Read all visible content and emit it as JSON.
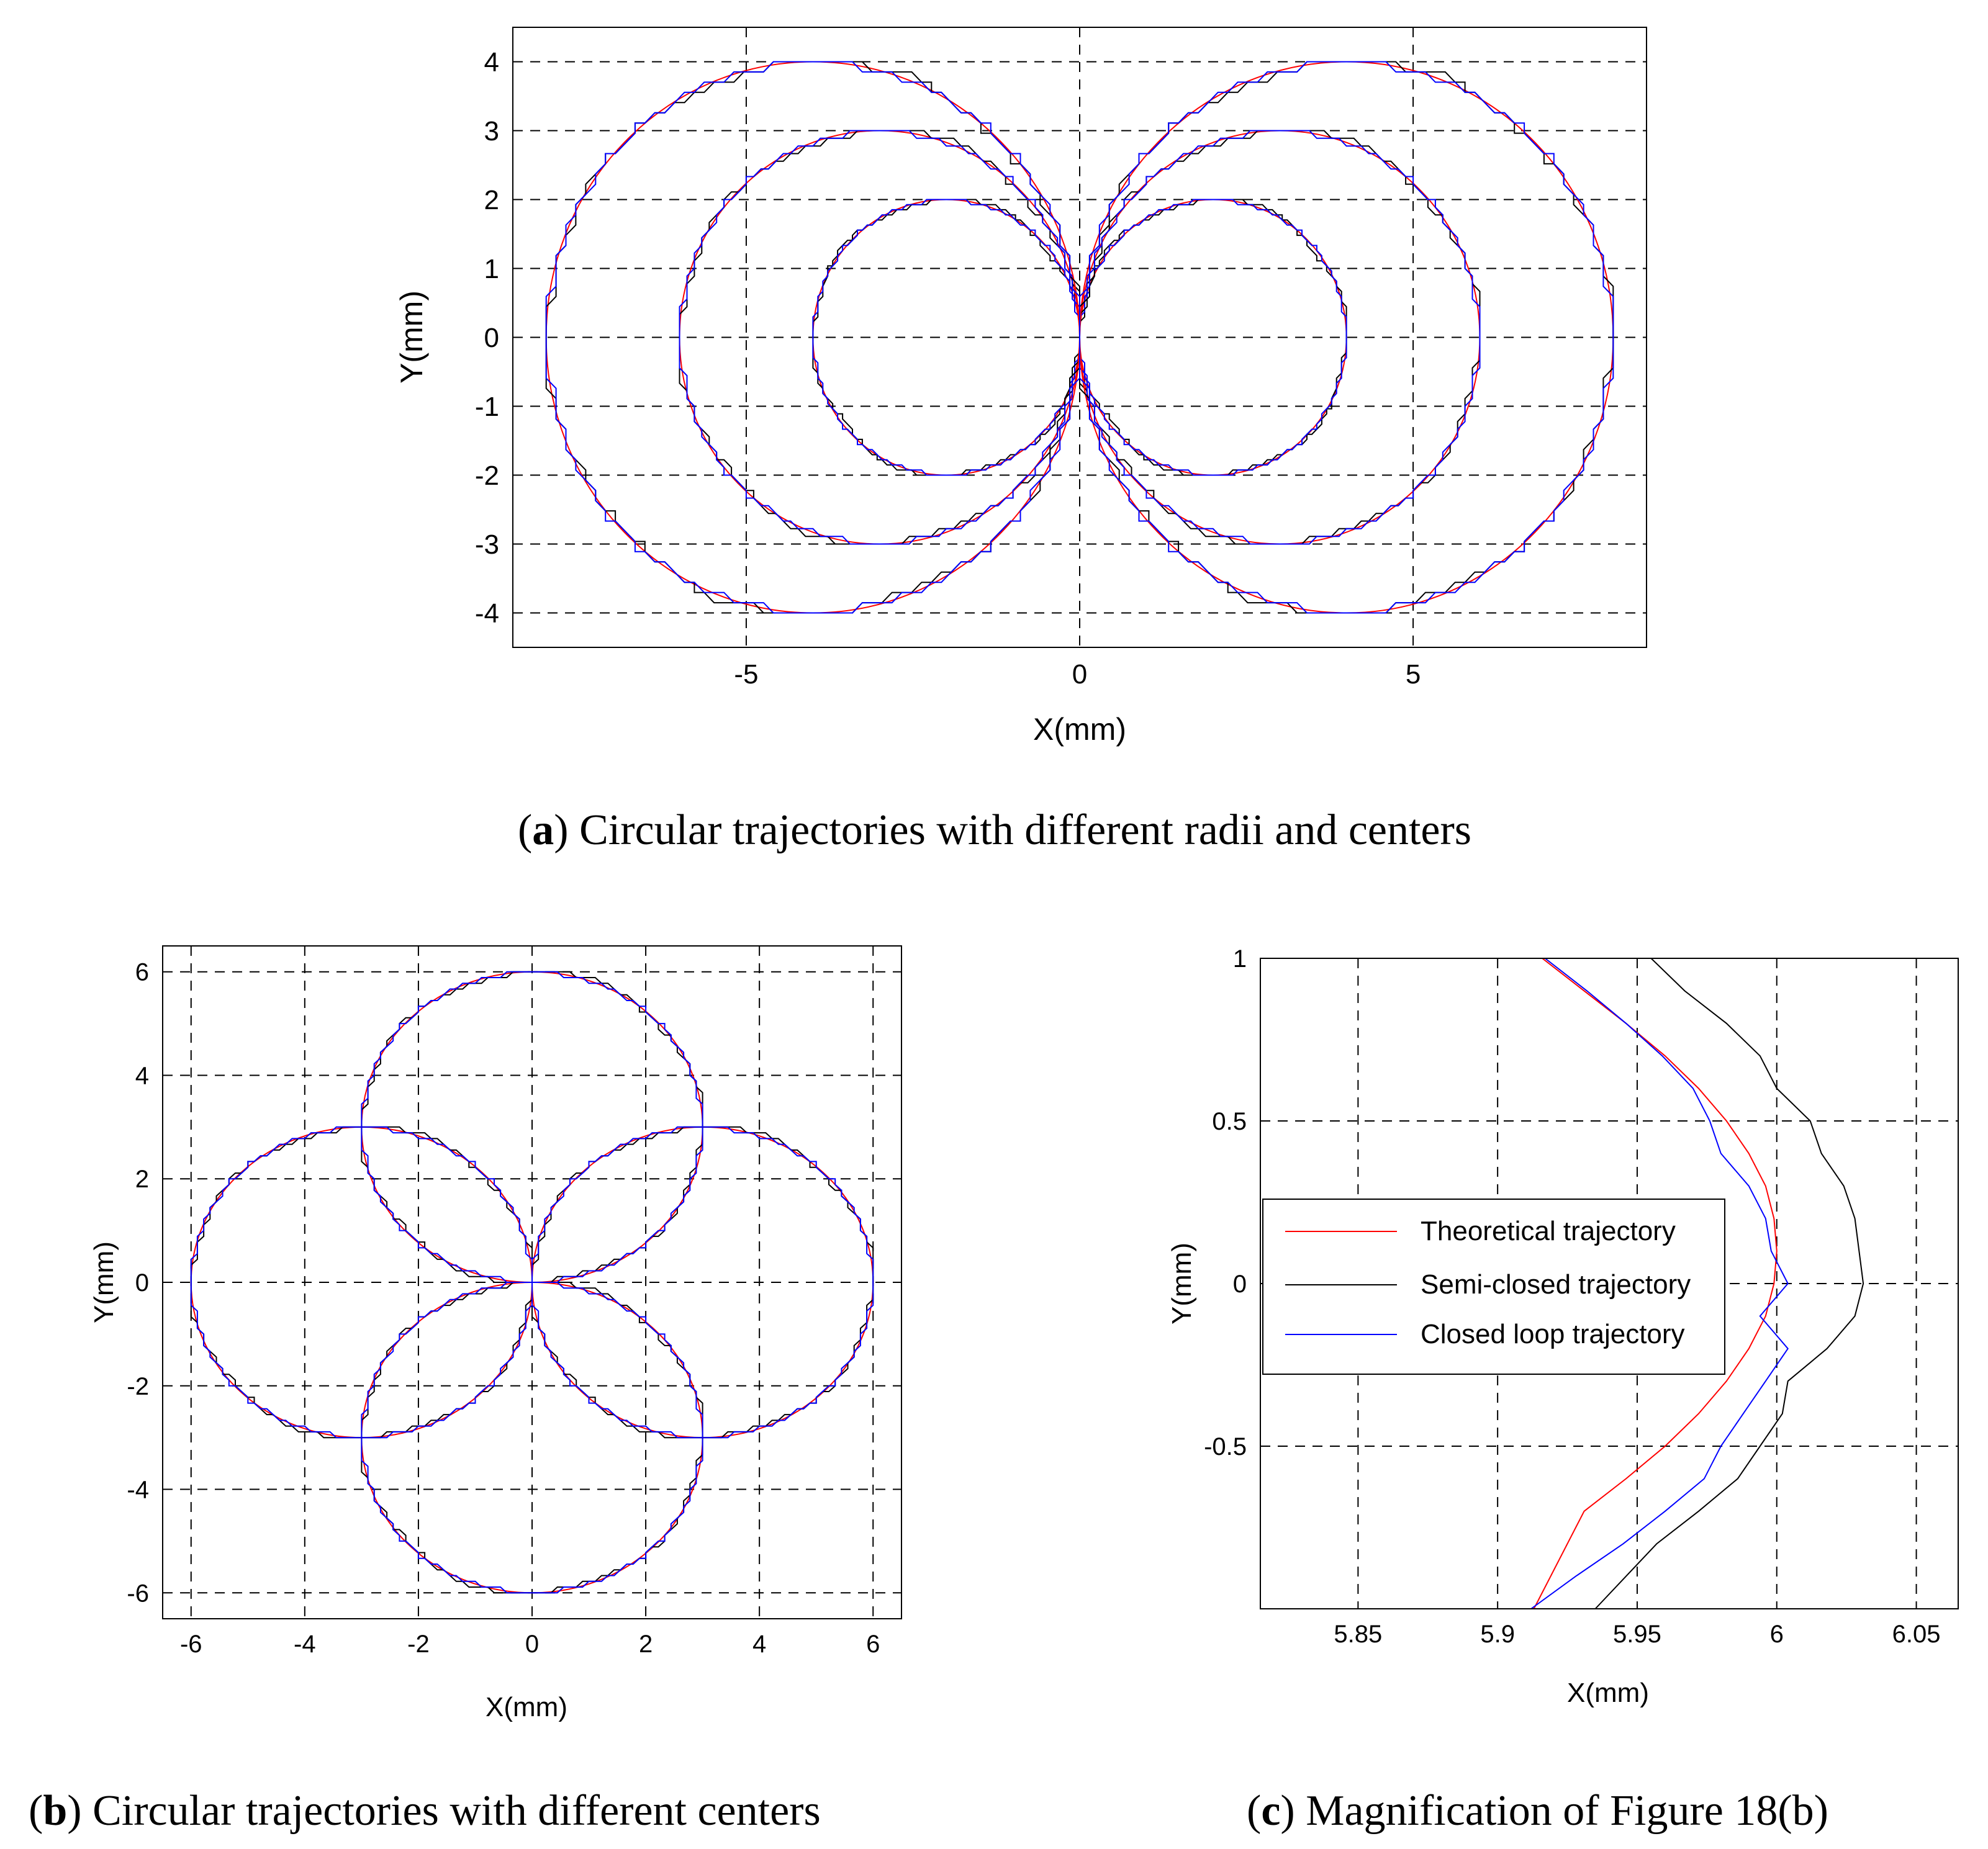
{
  "chart_data": [
    {
      "type": "line",
      "panel_letter": "a",
      "caption": "Circular trajectories with different radii and centers",
      "xlabel": "X(mm)",
      "ylabel": "Y(mm)",
      "xlim": [
        -8.5,
        8.5
      ],
      "ylim": [
        -4.5,
        4.5
      ],
      "xticks": [
        -5,
        0,
        5
      ],
      "xtick_labels": [
        "-5",
        "0",
        "5"
      ],
      "yticks": [
        -4,
        -3,
        -2,
        -1,
        0,
        1,
        2,
        3,
        4
      ],
      "ytick_labels": [
        "-4",
        "-3",
        "-2",
        "-1",
        "0",
        "1",
        "2",
        "3",
        "4"
      ],
      "grid": true,
      "series_colors": {
        "theoretical": "#ff0000",
        "semi_closed": "#000000",
        "closed_loop": "#0000ff"
      },
      "circles": [
        {
          "cx": -2,
          "cy": 0,
          "r": 2
        },
        {
          "cx": -3,
          "cy": 0,
          "r": 3
        },
        {
          "cx": -4,
          "cy": 0,
          "r": 4
        },
        {
          "cx": 2,
          "cy": 0,
          "r": 2
        },
        {
          "cx": 3,
          "cy": 0,
          "r": 3
        },
        {
          "cx": 4,
          "cy": 0,
          "r": 4
        }
      ]
    },
    {
      "type": "line",
      "panel_letter": "b",
      "caption": "Circular trajectories with different centers",
      "xlabel": "X(mm)",
      "ylabel": "Y(mm)",
      "xlim": [
        -6.5,
        6.5
      ],
      "ylim": [
        -6.5,
        6.5
      ],
      "xticks": [
        -6,
        -4,
        -2,
        0,
        2,
        4,
        6
      ],
      "xtick_labels": [
        "-6",
        "-4",
        "-2",
        "0",
        "2",
        "4",
        "6"
      ],
      "yticks": [
        -6,
        -4,
        -2,
        0,
        2,
        4,
        6
      ],
      "ytick_labels": [
        "-6",
        "-4",
        "-2",
        "0",
        "2",
        "4",
        "6"
      ],
      "grid": true,
      "series_colors": {
        "theoretical": "#ff0000",
        "semi_closed": "#000000",
        "closed_loop": "#0000ff"
      },
      "circles": [
        {
          "cx": 0,
          "cy": 3,
          "r": 3
        },
        {
          "cx": 0,
          "cy": -3,
          "r": 3
        },
        {
          "cx": -3,
          "cy": 0,
          "r": 3
        },
        {
          "cx": 3,
          "cy": 0,
          "r": 3
        }
      ]
    },
    {
      "type": "line",
      "panel_letter": "c",
      "caption": "Magnification of Figure 18(b)",
      "xlabel": "X(mm)",
      "ylabel": "Y(mm)",
      "xlim": [
        5.815,
        6.065
      ],
      "ylim": [
        -1,
        1
      ],
      "xticks": [
        5.85,
        5.9,
        5.95,
        6,
        6.05
      ],
      "xtick_labels": [
        "5.85",
        "5.9",
        "5.95",
        "6",
        "6.05"
      ],
      "yticks": [
        1,
        0.5,
        0,
        -0.5
      ],
      "ytick_labels": [
        "1",
        "0.5",
        "0",
        "-0.5"
      ],
      "grid": true,
      "legend_position": "center-left",
      "legend": [
        "Theoretical trajectory",
        "Semi-closed trajectory",
        "Closed loop trajectory"
      ],
      "series": [
        {
          "name": "Theoretical trajectory",
          "color": "#ff0000",
          "x": [
            5.916,
            5.931,
            5.946,
            5.96,
            5.972,
            5.982,
            5.99,
            5.996,
            5.999,
            6.0,
            5.999,
            5.996,
            5.99,
            5.982,
            5.972,
            5.96,
            5.946,
            5.931,
            5.913
          ],
          "y": [
            1.0,
            0.9,
            0.8,
            0.7,
            0.6,
            0.5,
            0.4,
            0.3,
            0.2,
            0.1,
            0.0,
            -0.1,
            -0.2,
            -0.3,
            -0.4,
            -0.5,
            -0.6,
            -0.7,
            -1.0
          ]
        },
        {
          "name": "Semi-closed trajectory",
          "color": "#000000",
          "x": [
            5.955,
            5.967,
            5.982,
            5.994,
            6.0,
            6.012,
            6.016,
            6.024,
            6.028,
            6.031,
            6.028,
            6.018,
            6.004,
            6.002,
            5.994,
            5.986,
            5.972,
            5.957,
            5.935
          ],
          "y": [
            1.0,
            0.9,
            0.8,
            0.7,
            0.6,
            0.5,
            0.4,
            0.3,
            0.2,
            0.0,
            -0.1,
            -0.2,
            -0.3,
            -0.4,
            -0.5,
            -0.6,
            -0.7,
            -0.8,
            -1.0
          ]
        },
        {
          "name": "Closed loop trajectory",
          "color": "#0000ff",
          "x": [
            5.917,
            5.932,
            5.946,
            5.959,
            5.97,
            5.976,
            5.98,
            5.99,
            5.996,
            5.998,
            6.004,
            5.994,
            6.004,
            5.996,
            5.988,
            5.98,
            5.974,
            5.96,
            5.945,
            5.928,
            5.912
          ],
          "y": [
            1.0,
            0.9,
            0.8,
            0.7,
            0.6,
            0.5,
            0.4,
            0.3,
            0.2,
            0.1,
            0.0,
            -0.1,
            -0.2,
            -0.3,
            -0.4,
            -0.5,
            -0.6,
            -0.7,
            -0.8,
            -0.9,
            -1.0
          ]
        }
      ]
    }
  ]
}
